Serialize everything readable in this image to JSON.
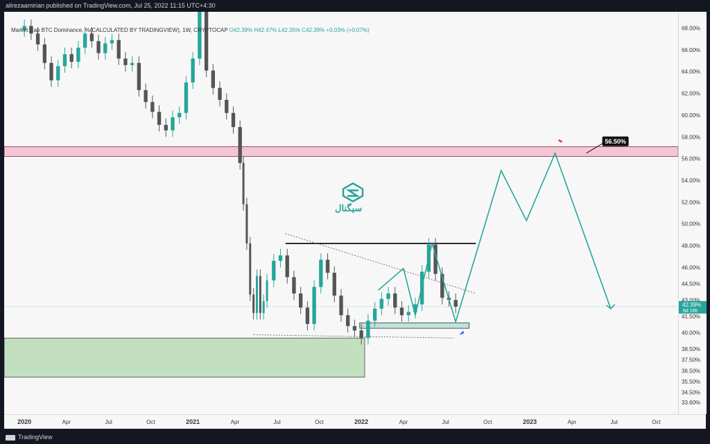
{
  "header": {
    "publisher_line": "alirezaamirian published on TradingView.com, Jul 25, 2022 11:15 UTC+4:30"
  },
  "legend": {
    "symbol_line": "Market Cap BTC Dominance, %(CALCULATED BY TRADINGVIEW), 1W, CRYPTOCAP",
    "ohlc": "O42.39%  H42.47%  L42.35%  C42.39%  +0.03% (+0.07%)"
  },
  "watermark": {
    "brand_text": "سیگنال",
    "color": "#26a69a"
  },
  "annotations": {
    "target_label": "56.50%"
  },
  "price_tag": {
    "value": "42.39%",
    "countdown": "6d 18h"
  },
  "footer": {
    "brand": "TradingView"
  },
  "colors": {
    "up": "#26a69a",
    "down": "#555555",
    "path": "#26a69a",
    "resistance_zone": "#f4c6d4",
    "support_zone": "#c2e0c0",
    "small_zone": "#bfe3dc",
    "background": "#f7f7f7"
  },
  "chart_data": {
    "type": "candlestick",
    "price_ticks": [
      "68.00%",
      "66.00%",
      "64.00%",
      "62.00%",
      "60.00%",
      "58.00%",
      "56.00%",
      "54.00%",
      "52.00%",
      "50.00%",
      "48.00%",
      "46.00%",
      "44.50%",
      "43.00%",
      "41.50%",
      "40.00%",
      "38.50%",
      "37.50%",
      "36.50%",
      "35.50%",
      "34.50%",
      "33.60%"
    ],
    "time_ticks": [
      "2020",
      "Apr",
      "Jul",
      "Oct",
      "2021",
      "Apr",
      "Jul",
      "Oct",
      "2022",
      "Apr",
      "Jul",
      "Oct",
      "2023",
      "Apr",
      "Jul",
      "Oct"
    ],
    "bold_time_ticks": [
      "2020",
      "2021",
      "2022",
      "2023"
    ],
    "ylim": [
      32.5,
      69.5
    ],
    "candles_close_path": [
      [
        2019.96,
        67.8
      ],
      [
        2020.0,
        68.2
      ],
      [
        2020.04,
        67.5
      ],
      [
        2020.08,
        66.5
      ],
      [
        2020.12,
        64.8
      ],
      [
        2020.16,
        63.2
      ],
      [
        2020.2,
        64.5
      ],
      [
        2020.24,
        65.6
      ],
      [
        2020.28,
        64.9
      ],
      [
        2020.32,
        66.2
      ],
      [
        2020.36,
        67.5
      ],
      [
        2020.4,
        66.8
      ],
      [
        2020.44,
        65.7
      ],
      [
        2020.48,
        66.6
      ],
      [
        2020.52,
        66.9
      ],
      [
        2020.56,
        65.2
      ],
      [
        2020.6,
        64.6
      ],
      [
        2020.64,
        64.8
      ],
      [
        2020.68,
        62.3
      ],
      [
        2020.72,
        61.2
      ],
      [
        2020.76,
        60.3
      ],
      [
        2020.8,
        59.1
      ],
      [
        2020.84,
        58.6
      ],
      [
        2020.88,
        59.8
      ],
      [
        2020.92,
        60.2
      ],
      [
        2020.96,
        63.0
      ],
      [
        2021.0,
        65.2
      ],
      [
        2021.04,
        70.3
      ],
      [
        2021.08,
        64.1
      ],
      [
        2021.12,
        62.5
      ],
      [
        2021.16,
        61.4
      ],
      [
        2021.2,
        60.2
      ],
      [
        2021.24,
        58.9
      ],
      [
        2021.28,
        55.6
      ],
      [
        2021.3,
        51.8
      ],
      [
        2021.32,
        48.2
      ],
      [
        2021.34,
        43.5
      ],
      [
        2021.36,
        41.8
      ],
      [
        2021.38,
        45.2
      ],
      [
        2021.4,
        41.8
      ],
      [
        2021.42,
        42.9
      ],
      [
        2021.44,
        44.8
      ],
      [
        2021.48,
        46.6
      ],
      [
        2021.52,
        47.1
      ],
      [
        2021.56,
        45.1
      ],
      [
        2021.6,
        43.6
      ],
      [
        2021.64,
        42.3
      ],
      [
        2021.68,
        40.8
      ],
      [
        2021.72,
        44.2
      ],
      [
        2021.76,
        46.7
      ],
      [
        2021.8,
        45.5
      ],
      [
        2021.84,
        43.4
      ],
      [
        2021.88,
        41.6
      ],
      [
        2021.92,
        40.6
      ],
      [
        2021.96,
        40.2
      ],
      [
        2022.0,
        39.5
      ],
      [
        2022.04,
        41.1
      ],
      [
        2022.08,
        42.2
      ],
      [
        2022.12,
        43.1
      ],
      [
        2022.16,
        43.6
      ],
      [
        2022.2,
        42.3
      ],
      [
        2022.24,
        41.6
      ],
      [
        2022.28,
        41.9
      ],
      [
        2022.32,
        42.6
      ],
      [
        2022.36,
        45.6
      ],
      [
        2022.4,
        48.1
      ],
      [
        2022.44,
        45.4
      ],
      [
        2022.48,
        43.2
      ],
      [
        2022.52,
        43.0
      ],
      [
        2022.56,
        42.39
      ]
    ],
    "resistance_zone": [
      56.2,
      57.1
    ],
    "support_zone": [
      35.9,
      39.5
    ],
    "small_zone": [
      40.4,
      40.9
    ],
    "horizontal_line": 48.2,
    "trendline_upper": [
      [
        2021.55,
        49.1
      ],
      [
        2022.68,
        43.6
      ]
    ],
    "trendline_lower": [
      [
        2021.36,
        39.8
      ],
      [
        2022.55,
        39.5
      ]
    ],
    "projection_path": [
      [
        2022.1,
        43.9
      ],
      [
        2022.25,
        45.9
      ],
      [
        2022.32,
        41.6
      ],
      [
        2022.42,
        48.2
      ],
      [
        2022.56,
        41.0
      ],
      [
        2022.83,
        54.9
      ],
      [
        2022.98,
        50.3
      ],
      [
        2023.15,
        56.5
      ],
      [
        2023.48,
        42.2
      ]
    ],
    "current_price": 42.39
  }
}
